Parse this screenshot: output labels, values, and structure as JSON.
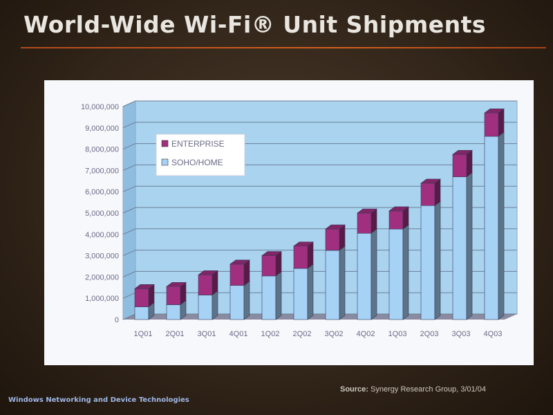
{
  "slide": {
    "title": "World-Wide Wi-Fi® Unit Shipments",
    "source_label": "Source:",
    "source_text": "Synergy Research Group, 3/01/04",
    "footer": "Windows Networking and Device Technologies"
  },
  "colors": {
    "enterprise": "#a0307f",
    "soho_home": "#a6d2f6",
    "plot_back": "#a9d3ef",
    "plot_floor": "#8a8aa0"
  },
  "chart_data": {
    "type": "bar",
    "stacked": true,
    "categories": [
      "1Q01",
      "2Q01",
      "3Q01",
      "4Q01",
      "1Q02",
      "2Q02",
      "3Q02",
      "4Q02",
      "1Q03",
      "2Q03",
      "3Q03",
      "4Q03"
    ],
    "series": [
      {
        "name": "SOHO/HOME",
        "values": [
          600000,
          700000,
          1150000,
          1600000,
          2050000,
          2400000,
          3250000,
          4050000,
          4250000,
          5350000,
          6700000,
          8600000
        ]
      },
      {
        "name": "ENTERPRISE",
        "values": [
          850000,
          850000,
          950000,
          1000000,
          950000,
          1050000,
          1000000,
          950000,
          850000,
          1050000,
          1050000,
          1100000
        ]
      }
    ],
    "y_ticks": [
      "0",
      "1,000,000",
      "2,000,000",
      "3,000,000",
      "4,000,000",
      "5,000,000",
      "6,000,000",
      "7,000,000",
      "8,000,000",
      "9,000,000",
      "10,000,000"
    ],
    "ylim": [
      0,
      10000000
    ],
    "legend": [
      "ENTERPRISE",
      "SOHO/HOME"
    ],
    "legend_position": "top-left",
    "grid": true
  }
}
